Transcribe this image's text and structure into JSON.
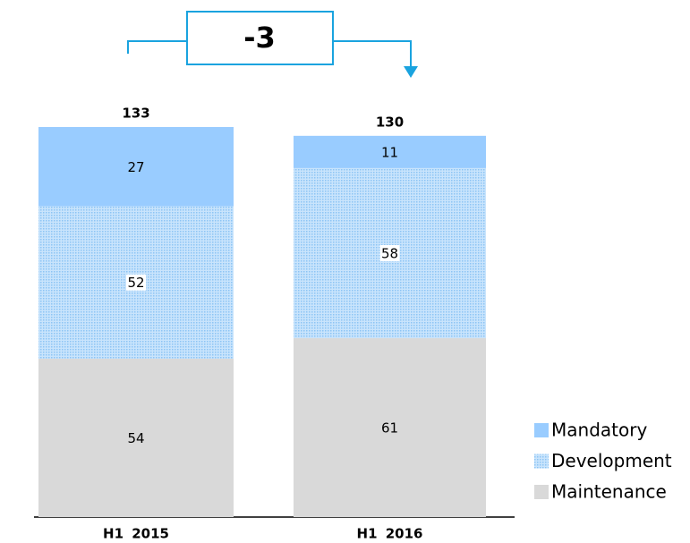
{
  "chart_data": {
    "type": "stacked_bar",
    "categories": [
      "H1 2015",
      "H1 2016"
    ],
    "series": [
      {
        "name": "Maintenance",
        "color": "#d9d9d9",
        "values": [
          54,
          61
        ]
      },
      {
        "name": "Development",
        "color": "#a8d3fb",
        "pattern": "dots",
        "values": [
          52,
          58
        ]
      },
      {
        "name": "Mandatory",
        "color": "#99ccff",
        "values": [
          27,
          11
        ]
      }
    ],
    "totals": [
      133,
      130
    ],
    "annotation": "-3"
  }
}
